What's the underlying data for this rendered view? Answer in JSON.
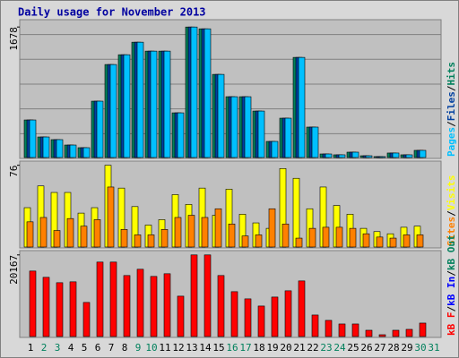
{
  "chart_data": {
    "type": "bar",
    "title": "Daily usage for November 2013",
    "categories": [
      "1",
      "2",
      "3",
      "4",
      "5",
      "6",
      "7",
      "8",
      "9",
      "10",
      "11",
      "12",
      "13",
      "14",
      "15",
      "16",
      "17",
      "18",
      "19",
      "20",
      "21",
      "22",
      "23",
      "24",
      "25",
      "26",
      "27",
      "28",
      "29",
      "30",
      "31"
    ],
    "category_colors": [
      "#000000",
      "#00805c",
      "#00805c",
      "#000000",
      "#000000",
      "#000000",
      "#000000",
      "#000000",
      "#00805c",
      "#00805c",
      "#000000",
      "#000000",
      "#000000",
      "#000000",
      "#000000",
      "#00805c",
      "#00805c",
      "#000000",
      "#000000",
      "#000000",
      "#000000",
      "#000000",
      "#00805c",
      "#00805c",
      "#000000",
      "#000000",
      "#000000",
      "#000000",
      "#000000",
      "#00805c",
      "#00805c"
    ],
    "separator": "/",
    "panels": [
      {
        "ylim": [
          0,
          1760
        ],
        "yticks": [
          1678
        ],
        "grid": true,
        "series": [
          {
            "name": "Pages",
            "color": "#00c0ff",
            "values": [
              491,
              274,
              240,
              171,
              137,
              731,
              1199,
              1324,
              1484,
              1370,
              1370,
              582,
              1678,
              1655,
              1073,
              788,
              788,
              605,
              217,
              514,
              1290,
              400,
              57,
              46,
              80,
              34,
              23,
              69,
              46,
              103,
              null
            ]
          },
          {
            "name": "Files",
            "color": "#0040a0",
            "values": [
              491,
              274,
              240,
              171,
              137,
              731,
              1199,
              1324,
              1484,
              1370,
              1370,
              582,
              1678,
              1655,
              1073,
              788,
              788,
              605,
              217,
              514,
              1290,
              400,
              57,
              46,
              80,
              34,
              23,
              69,
              46,
              103,
              null
            ]
          },
          {
            "name": "Hits",
            "color": "#00805c",
            "values": [
              491,
              274,
              240,
              171,
              137,
              731,
              1199,
              1324,
              1484,
              1370,
              1370,
              582,
              1678,
              1655,
              1073,
              788,
              788,
              605,
              217,
              514,
              1290,
              400,
              57,
              46,
              80,
              34,
              23,
              69,
              46,
              103,
              null
            ]
          }
        ]
      },
      {
        "ylim": [
          0,
          79
        ],
        "yticks": [
          76
        ],
        "grid": false,
        "series": [
          {
            "name": "Sites",
            "color": "#ff8000",
            "values": [
              24,
              28,
              16,
              27,
              20,
              26,
              56,
              17,
              12,
              12,
              17,
              28,
              30,
              28,
              36,
              22,
              11,
              12,
              36,
              22,
              9,
              18,
              19,
              19,
              18,
              13,
              10,
              9,
              12,
              12,
              null
            ]
          },
          {
            "name": "Visits",
            "color": "#ffff00",
            "values": [
              37,
              57,
              51,
              51,
              32,
              37,
              76,
              55,
              38,
              21,
              26,
              49,
              40,
              55,
              30,
              54,
              31,
              23,
              18,
              73,
              64,
              36,
              56,
              39,
              31,
              18,
              15,
              13,
              19,
              20,
              null
            ]
          }
        ]
      },
      {
        "ylim": [
          0,
          21000
        ],
        "yticks": [
          20167
        ],
        "grid": false,
        "series": [
          {
            "name": "kB F",
            "color": "#ff0000",
            "values": [
              16222,
              14687,
              13372,
              13591,
              8549,
              18414,
              18414,
              15126,
              16660,
              14907,
              15564,
              10084,
              20167,
              20167,
              15126,
              11180,
              9426,
              7672,
              9865,
              11399,
              13810,
              5480,
              4165,
              3288,
              3288,
              1754,
              658,
              1754,
              1973,
              3507,
              null
            ]
          },
          {
            "name": "kB In",
            "color": "#0000ff",
            "values": [
              null,
              null,
              null,
              null,
              null,
              null,
              null,
              null,
              null,
              null,
              null,
              null,
              null,
              null,
              null,
              null,
              null,
              null,
              null,
              null,
              null,
              null,
              null,
              null,
              null,
              null,
              null,
              null,
              null,
              null,
              null
            ]
          },
          {
            "name": "kB Out",
            "color": "#00805c",
            "values": [
              null,
              null,
              null,
              null,
              null,
              null,
              null,
              null,
              null,
              null,
              null,
              null,
              null,
              null,
              null,
              null,
              null,
              null,
              null,
              null,
              null,
              null,
              null,
              null,
              null,
              null,
              null,
              null,
              null,
              null,
              null
            ]
          }
        ]
      }
    ]
  }
}
